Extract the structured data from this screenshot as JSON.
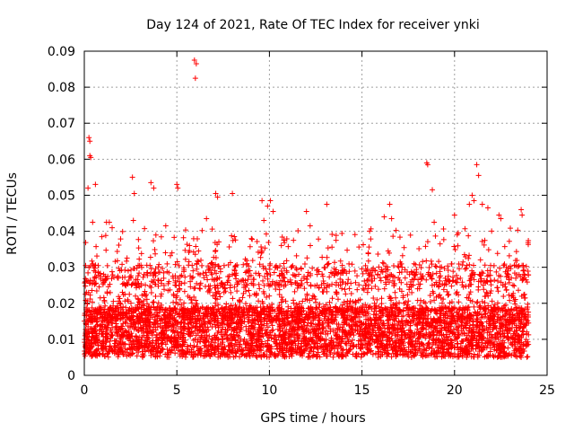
{
  "chart_data": {
    "type": "scatter",
    "title": "Day 124 of 2021, Rate Of TEC Index for receiver ynki",
    "xlabel": "GPS time / hours",
    "ylabel": "ROTI / TECUs",
    "xlim": [
      0,
      25
    ],
    "ylim": [
      0,
      0.09
    ],
    "xticks": [
      0,
      5,
      10,
      15,
      20,
      25
    ],
    "xtick_labels": [
      "0",
      "5",
      "10",
      "15",
      "20",
      "25"
    ],
    "yticks": [
      0,
      0.01,
      0.02,
      0.03,
      0.04,
      0.05,
      0.06,
      0.07,
      0.08,
      0.09
    ],
    "ytick_labels": [
      "0",
      "0.01",
      "0.02",
      "0.03",
      "0.04",
      "0.05",
      "0.06",
      "0.07",
      "0.08",
      "0.09"
    ],
    "grid": true,
    "marker": "+",
    "color": "#ff0000",
    "series": [
      {
        "name": "ROTI",
        "points": [
          [
            0.1,
            0.0155
          ],
          [
            0.2,
            0.052
          ],
          [
            0.25,
            0.066
          ],
          [
            0.3,
            0.061
          ],
          [
            0.3,
            0.065
          ],
          [
            0.35,
            0.0605
          ],
          [
            0.45,
            0.0425
          ],
          [
            0.6,
            0.053
          ],
          [
            0.95,
            0.0385
          ],
          [
            1.2,
            0.0425
          ],
          [
            1.35,
            0.0425
          ],
          [
            2.6,
            0.055
          ],
          [
            2.7,
            0.0505
          ],
          [
            2.65,
            0.043
          ],
          [
            3.6,
            0.0535
          ],
          [
            3.75,
            0.052
          ],
          [
            4.4,
            0.0415
          ],
          [
            5.0,
            0.053
          ],
          [
            5.05,
            0.052
          ],
          [
            5.95,
            0.0875
          ],
          [
            6.05,
            0.0865
          ],
          [
            6.0,
            0.0825
          ],
          [
            6.6,
            0.0435
          ],
          [
            7.1,
            0.0505
          ],
          [
            7.2,
            0.0495
          ],
          [
            8.0,
            0.0505
          ],
          [
            9.6,
            0.0485
          ],
          [
            9.9,
            0.047
          ],
          [
            10.05,
            0.0485
          ],
          [
            10.2,
            0.0455
          ],
          [
            9.7,
            0.043
          ],
          [
            11.3,
            0.0375
          ],
          [
            12.0,
            0.0455
          ],
          [
            12.2,
            0.0415
          ],
          [
            13.1,
            0.0475
          ],
          [
            13.6,
            0.0375
          ],
          [
            16.2,
            0.044
          ],
          [
            16.5,
            0.0475
          ],
          [
            16.6,
            0.0435
          ],
          [
            18.5,
            0.059
          ],
          [
            18.55,
            0.0585
          ],
          [
            18.8,
            0.0515
          ],
          [
            18.9,
            0.0425
          ],
          [
            20.0,
            0.0445
          ],
          [
            20.2,
            0.0395
          ],
          [
            20.8,
            0.0475
          ],
          [
            20.95,
            0.05
          ],
          [
            21.05,
            0.0485
          ],
          [
            21.2,
            0.0585
          ],
          [
            21.3,
            0.0555
          ],
          [
            21.5,
            0.0475
          ],
          [
            21.8,
            0.0465
          ],
          [
            22.4,
            0.0445
          ],
          [
            22.5,
            0.0435
          ],
          [
            23.6,
            0.046
          ],
          [
            23.65,
            0.0445
          ]
        ]
      }
    ]
  }
}
